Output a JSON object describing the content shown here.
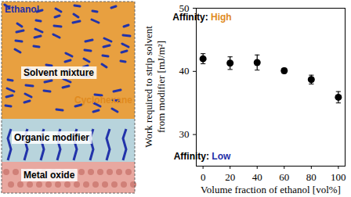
{
  "chart_data": {
    "type": "scatter",
    "x": [
      0,
      20,
      40,
      60,
      80,
      100
    ],
    "values": [
      42.0,
      41.3,
      41.4,
      40.1,
      38.7,
      35.9
    ],
    "errors": [
      0.8,
      1.0,
      1.2,
      0.4,
      0.7,
      0.9
    ],
    "xlabel": "Volume fraction of ethanol [vol%]",
    "ylabel": [
      "Work required to strip solvent",
      "from modifier [mJ/m²]"
    ],
    "xlim": [
      -5,
      105
    ],
    "ylim": [
      25,
      50
    ],
    "xticks": [
      0,
      20,
      40,
      60,
      80,
      100
    ],
    "yticks": [
      30,
      40,
      50
    ],
    "color": "#000000",
    "marker": "circle",
    "annotations": [
      {
        "text": "Affinity:",
        "value": "High",
        "color": "#e08a1e"
      },
      {
        "text": "Affinity:",
        "value": "Low",
        "color": "#1f2fa8"
      }
    ]
  },
  "illustration": {
    "labels": [
      {
        "text": "Ethanol",
        "color": "#1f2fa8"
      },
      {
        "text": "Solvent mixture",
        "color": "#000000"
      },
      {
        "text": "Cyclohexane",
        "color": "#e08a1e"
      },
      {
        "text": "Organic modifier",
        "color": "#000000"
      },
      {
        "text": "Metal oxide",
        "color": "#000000"
      }
    ]
  }
}
